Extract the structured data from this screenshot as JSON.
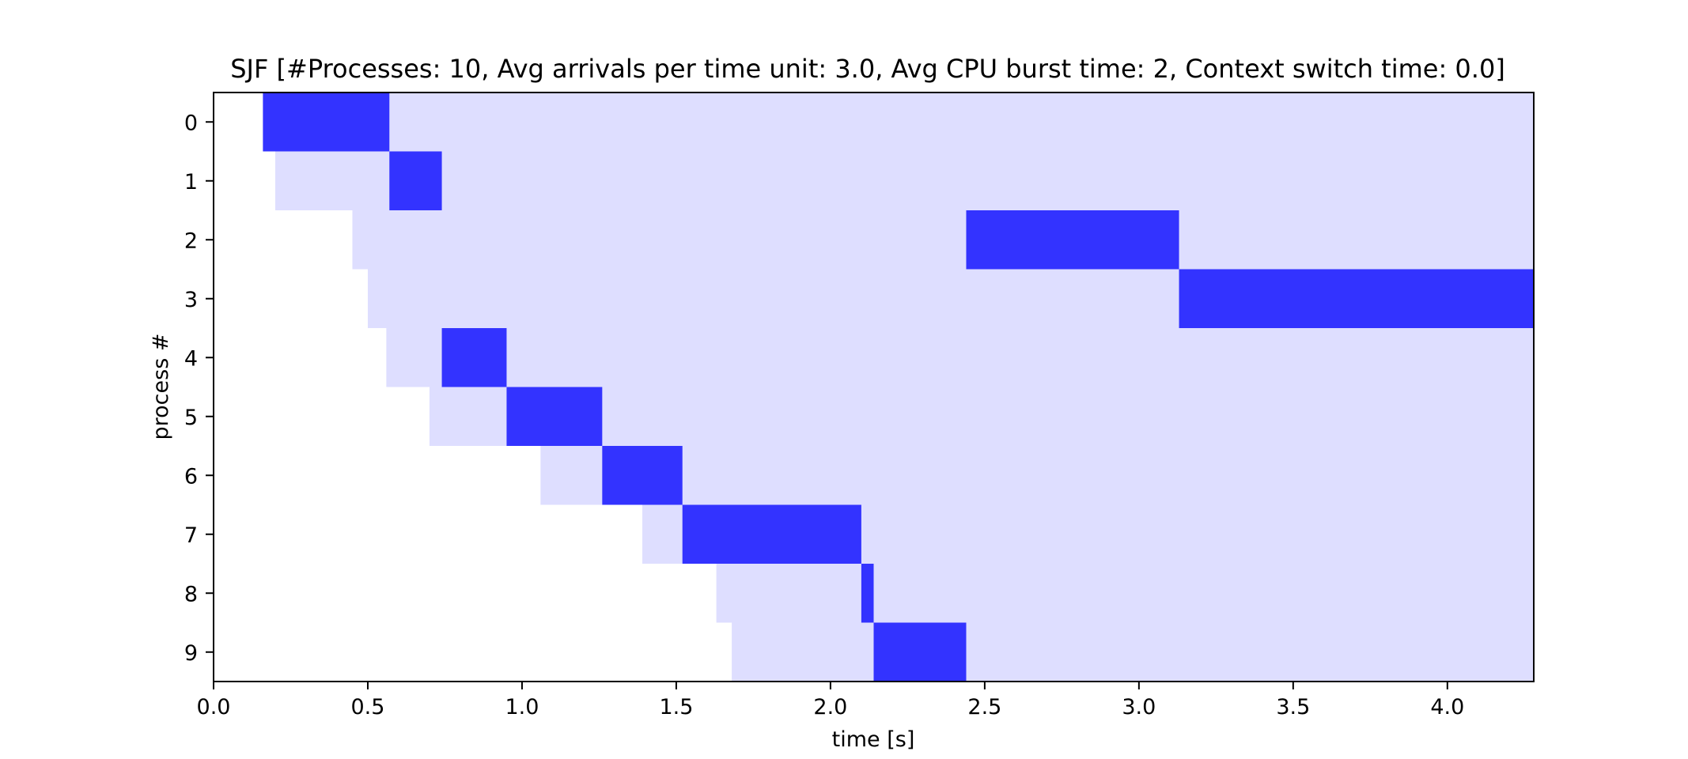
{
  "chart_data": {
    "type": "gantt",
    "title": "SJF [#Processes: 10, Avg arrivals per time unit: 3.0, Avg CPU burst time: 2, Context switch time: 0.0]",
    "xlabel": "time [s]",
    "ylabel": "process #",
    "xlim": [
      0,
      4.28
    ],
    "x_ticks": [
      "0.0",
      "0.5",
      "1.0",
      "1.5",
      "2.0",
      "2.5",
      "3.0",
      "3.5",
      "4.0"
    ],
    "y_ticks": [
      "0",
      "1",
      "2",
      "3",
      "4",
      "5",
      "6",
      "7",
      "8",
      "9"
    ],
    "grid": false,
    "colors": {
      "waiting": "#dedeff",
      "running": "#3333ff",
      "axis": "#000000"
    },
    "processes": [
      {
        "id": 0,
        "arrival": 0.16,
        "start": 0.16,
        "end": 0.57
      },
      {
        "id": 1,
        "arrival": 0.2,
        "start": 0.57,
        "end": 0.74
      },
      {
        "id": 2,
        "arrival": 0.45,
        "start": 2.44,
        "end": 3.13
      },
      {
        "id": 3,
        "arrival": 0.5,
        "start": 3.13,
        "end": 4.28
      },
      {
        "id": 4,
        "arrival": 0.56,
        "start": 0.74,
        "end": 0.95
      },
      {
        "id": 5,
        "arrival": 0.7,
        "start": 0.95,
        "end": 1.26
      },
      {
        "id": 6,
        "arrival": 1.06,
        "start": 1.26,
        "end": 1.52
      },
      {
        "id": 7,
        "arrival": 1.39,
        "start": 1.52,
        "end": 2.1
      },
      {
        "id": 8,
        "arrival": 1.63,
        "start": 2.1,
        "end": 2.14
      },
      {
        "id": 9,
        "arrival": 1.68,
        "start": 2.14,
        "end": 2.44
      }
    ]
  }
}
